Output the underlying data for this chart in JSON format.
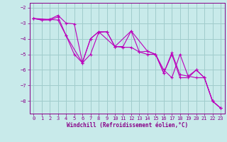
{
  "xlabel": "Windchill (Refroidissement éolien,°C)",
  "bg_color": "#c8eaea",
  "grid_color": "#a0cccc",
  "line_color": "#bb00bb",
  "xlim": [
    -0.5,
    23.5
  ],
  "ylim": [
    -8.8,
    -1.7
  ],
  "xticks": [
    0,
    1,
    2,
    3,
    4,
    5,
    6,
    7,
    8,
    9,
    10,
    11,
    12,
    13,
    14,
    15,
    16,
    17,
    18,
    19,
    20,
    21,
    22,
    23
  ],
  "yticks": [
    -8,
    -7,
    -6,
    -5,
    -4,
    -3,
    -2
  ],
  "series1": [
    [
      0,
      -2.7
    ],
    [
      1,
      -2.8
    ],
    [
      2,
      -2.8
    ],
    [
      3,
      -2.6
    ],
    [
      4,
      -3.8
    ],
    [
      5,
      -5.0
    ],
    [
      6,
      -5.55
    ],
    [
      7,
      -5.0
    ],
    [
      8,
      -3.6
    ],
    [
      9,
      -3.55
    ],
    [
      10,
      -4.5
    ],
    [
      11,
      -4.55
    ],
    [
      12,
      -4.55
    ],
    [
      13,
      -4.85
    ],
    [
      14,
      -5.0
    ],
    [
      15,
      -5.0
    ],
    [
      16,
      -6.2
    ],
    [
      17,
      -5.0
    ],
    [
      18,
      -6.5
    ],
    [
      19,
      -6.5
    ],
    [
      20,
      -6.0
    ],
    [
      21,
      -6.5
    ],
    [
      22,
      -8.0
    ],
    [
      23,
      -8.45
    ]
  ],
  "series2": [
    [
      0,
      -2.7
    ],
    [
      1,
      -2.8
    ],
    [
      2,
      -2.75
    ],
    [
      3,
      -2.5
    ],
    [
      4,
      -3.0
    ],
    [
      5,
      -3.05
    ],
    [
      6,
      -5.5
    ],
    [
      7,
      -4.0
    ],
    [
      8,
      -3.55
    ],
    [
      9,
      -3.55
    ],
    [
      10,
      -4.5
    ],
    [
      11,
      -4.5
    ],
    [
      12,
      -3.5
    ],
    [
      13,
      -4.85
    ],
    [
      14,
      -4.8
    ],
    [
      15,
      -5.0
    ],
    [
      16,
      -6.2
    ],
    [
      17,
      -4.9
    ],
    [
      18,
      -6.3
    ],
    [
      19,
      -6.4
    ],
    [
      20,
      -6.0
    ],
    [
      21,
      -6.5
    ],
    [
      22,
      -8.0
    ],
    [
      23,
      -8.45
    ]
  ],
  "series3": [
    [
      0,
      -2.7
    ],
    [
      3,
      -2.8
    ],
    [
      4,
      -3.8
    ],
    [
      6,
      -5.55
    ],
    [
      7,
      -4.0
    ],
    [
      8,
      -3.55
    ],
    [
      10,
      -4.5
    ],
    [
      12,
      -3.5
    ],
    [
      14,
      -4.8
    ],
    [
      15,
      -5.0
    ],
    [
      16,
      -6.0
    ],
    [
      17,
      -6.5
    ],
    [
      18,
      -5.0
    ],
    [
      19,
      -6.4
    ],
    [
      20,
      -6.5
    ],
    [
      21,
      -6.5
    ],
    [
      22,
      -8.0
    ],
    [
      23,
      -8.45
    ]
  ]
}
